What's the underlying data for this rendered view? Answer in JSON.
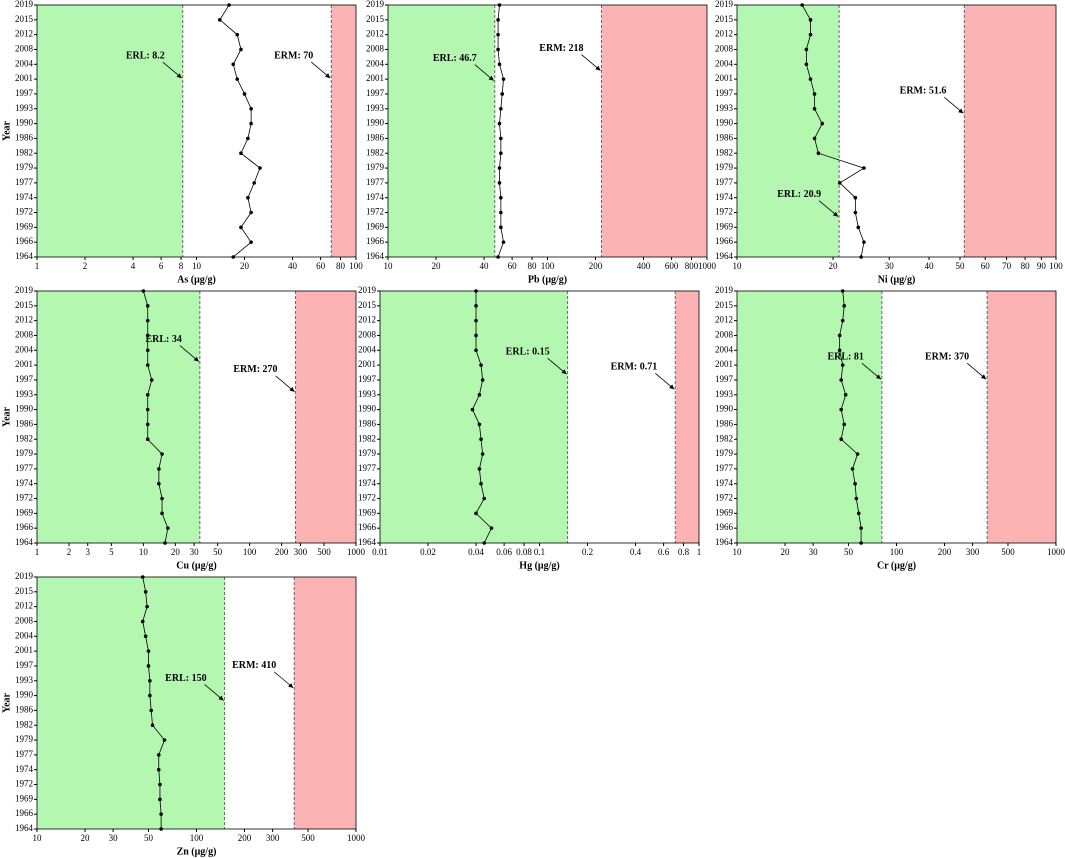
{
  "chart_data": [
    {
      "type": "line",
      "xlabel": "As (μg/g)",
      "ylabel": "Year",
      "xscale": "log",
      "color": "#000000",
      "erl_color": "#b3f7b0",
      "erm_color": "#fbb3b3",
      "categories": [
        "1964",
        "1966",
        "1969",
        "1972",
        "1974",
        "1977",
        "1979",
        "1982",
        "1986",
        "1990",
        "1993",
        "1997",
        "2001",
        "2004",
        "2008",
        "2012",
        "2015",
        "2019"
      ],
      "values": [
        17,
        22,
        19,
        22,
        21,
        23,
        25,
        19,
        21,
        22,
        22,
        20,
        18,
        17,
        19,
        18,
        14,
        16
      ],
      "xlim": [
        1,
        100
      ],
      "xticks": [
        1,
        2,
        4,
        6,
        8,
        10,
        20,
        40,
        60,
        80,
        100
      ],
      "erl": {
        "label": "ERL: 8.2",
        "value": 8.2
      },
      "erm": {
        "label": "ERM: 70",
        "value": 70
      }
    },
    {
      "type": "line",
      "xlabel": "Pb (μg/g)",
      "xscale": "log",
      "color": "#000000",
      "erl_color": "#b3f7b0",
      "erm_color": "#fbb3b3",
      "categories": [
        "1964",
        "1966",
        "1969",
        "1972",
        "1974",
        "1977",
        "1979",
        "1982",
        "1986",
        "1990",
        "1993",
        "1997",
        "2001",
        "2004",
        "2008",
        "2012",
        "2015",
        "2019"
      ],
      "values": [
        49,
        53,
        51,
        51,
        51,
        50,
        50,
        51,
        51,
        50,
        51,
        52,
        53,
        50,
        49,
        49,
        49,
        50
      ],
      "xlim": [
        10,
        1000
      ],
      "xticks": [
        10,
        20,
        40,
        60,
        80,
        100,
        200,
        400,
        600,
        800,
        1000
      ],
      "erl": {
        "label": "ERL: 46.7",
        "value": 46.7
      },
      "erm": {
        "label": "ERM: 218",
        "value": 218
      }
    },
    {
      "type": "line",
      "xlabel": "Ni (μg/g)",
      "xscale": "log",
      "color": "#000000",
      "erl_color": "#b3f7b0",
      "erm_color": "#fbb3b3",
      "categories": [
        "1964",
        "1966",
        "1969",
        "1972",
        "1974",
        "1977",
        "1979",
        "1982",
        "1986",
        "1990",
        "1993",
        "1997",
        "2001",
        "2004",
        "2008",
        "2012",
        "2015",
        "2019"
      ],
      "values": [
        24.5,
        25,
        24,
        23.5,
        23.5,
        21,
        25,
        18,
        17.5,
        18.5,
        17.5,
        17.5,
        17,
        16.5,
        16.5,
        17,
        17,
        16
      ],
      "xlim": [
        10,
        100
      ],
      "xticks": [
        10,
        20,
        30,
        40,
        50,
        60,
        70,
        80,
        90,
        100
      ],
      "erl": {
        "label": "ERL: 20.9",
        "value": 20.9
      },
      "erm": {
        "label": "ERM: 51.6",
        "value": 51.6
      }
    },
    {
      "type": "line",
      "xlabel": "Cu (μg/g)",
      "ylabel": "Year",
      "xscale": "log",
      "color": "#000000",
      "erl_color": "#b3f7b0",
      "erm_color": "#fbb3b3",
      "categories": [
        "1964",
        "1966",
        "1969",
        "1972",
        "1974",
        "1977",
        "1979",
        "1982",
        "1986",
        "1990",
        "1993",
        "1997",
        "2001",
        "2004",
        "2008",
        "2012",
        "2015",
        "2019"
      ],
      "values": [
        16,
        17,
        15,
        15,
        14,
        14,
        15,
        11,
        11,
        11,
        11,
        12,
        11,
        11,
        11,
        11,
        11,
        10
      ],
      "xlim": [
        1,
        1000
      ],
      "xticks": [
        1,
        2,
        3,
        5,
        10,
        20,
        30,
        50,
        100,
        200,
        300,
        500,
        1000
      ],
      "erl": {
        "label": "ERL: 34",
        "value": 34
      },
      "erm": {
        "label": "ERM: 270",
        "value": 270
      }
    },
    {
      "type": "line",
      "xlabel": "Hg (μg/g)",
      "xscale": "log",
      "color": "#000000",
      "erl_color": "#b3f7b0",
      "erm_color": "#fbb3b3",
      "categories": [
        "1964",
        "1966",
        "1969",
        "1972",
        "1974",
        "1977",
        "1979",
        "1982",
        "1986",
        "1990",
        "1993",
        "1997",
        "2001",
        "2004",
        "2008",
        "2012",
        "2015",
        "2019"
      ],
      "values": [
        0.045,
        0.05,
        0.04,
        0.045,
        0.043,
        0.042,
        0.044,
        0.043,
        0.042,
        0.038,
        0.042,
        0.044,
        0.043,
        0.04,
        0.04,
        0.04,
        0.04,
        0.04
      ],
      "xlim": [
        0.01,
        1
      ],
      "xticks": [
        0.01,
        0.02,
        0.04,
        0.06,
        0.08,
        0.1,
        0.2,
        0.4,
        0.6,
        0.8,
        1
      ],
      "erl": {
        "label": "ERL: 0.15",
        "value": 0.15
      },
      "erm": {
        "label": "ERM: 0.71",
        "value": 0.71
      }
    },
    {
      "type": "line",
      "xlabel": "Cr (μg/g)",
      "xscale": "log",
      "color": "#000000",
      "erl_color": "#b3f7b0",
      "erm_color": "#fbb3b3",
      "categories": [
        "1964",
        "1966",
        "1969",
        "1972",
        "1974",
        "1977",
        "1979",
        "1982",
        "1986",
        "1990",
        "1993",
        "1997",
        "2001",
        "2004",
        "2008",
        "2012",
        "2015",
        "2019"
      ],
      "values": [
        60,
        60,
        58,
        56,
        55,
        53,
        57,
        45,
        47,
        45,
        48,
        45,
        46,
        44,
        44,
        46,
        47,
        46
      ],
      "xlim": [
        10,
        1000
      ],
      "xticks": [
        10,
        20,
        30,
        50,
        100,
        200,
        300,
        500,
        1000
      ],
      "erl": {
        "label": "ERL: 81",
        "value": 81
      },
      "erm": {
        "label": "ERM: 370",
        "value": 370
      }
    },
    {
      "type": "line",
      "xlabel": "Zn (μg/g)",
      "ylabel": "Year",
      "xscale": "log",
      "color": "#000000",
      "erl_color": "#b3f7b0",
      "erm_color": "#fbb3b3",
      "categories": [
        "1964",
        "1966",
        "1969",
        "1972",
        "1974",
        "1977",
        "1979",
        "1982",
        "1986",
        "1990",
        "1993",
        "1997",
        "2001",
        "2004",
        "2008",
        "2012",
        "2015",
        "2019"
      ],
      "values": [
        60,
        60,
        59,
        59,
        58,
        58,
        63,
        53,
        52,
        51,
        51,
        50,
        50,
        48,
        46,
        49,
        48,
        46
      ],
      "xlim": [
        10,
        1000
      ],
      "xticks": [
        10,
        20,
        30,
        50,
        100,
        200,
        300,
        500,
        1000
      ],
      "erl": {
        "label": "ERL: 150",
        "value": 150
      },
      "erm": {
        "label": "ERM: 410",
        "value": 410
      }
    }
  ]
}
